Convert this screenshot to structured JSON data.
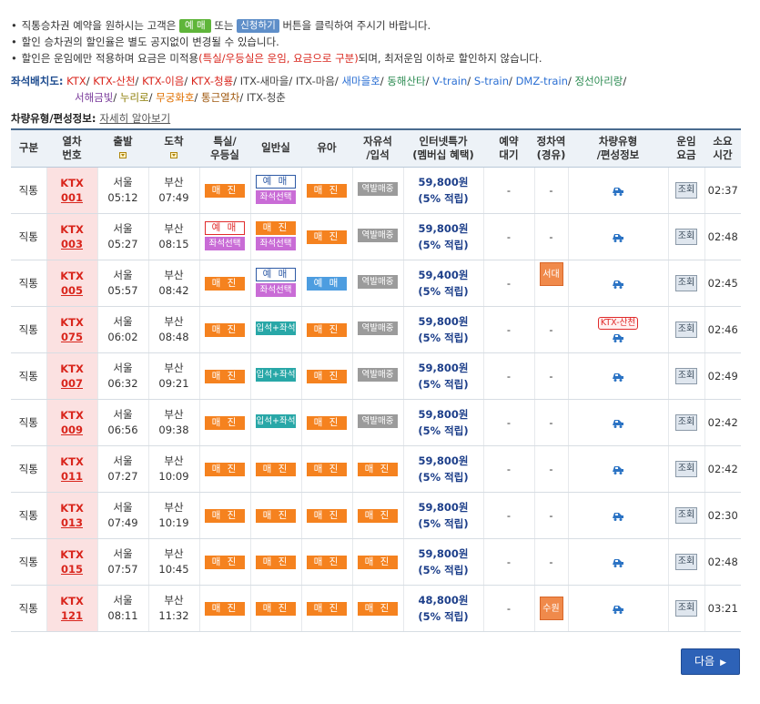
{
  "notes": [
    {
      "pre": "직통승차권 예약을 원하시는 고객은",
      "chip1": "예 매",
      "mid": "또는",
      "chip2": "신청하기",
      "post": "버튼을 클릭하여 주시기 바랍니다."
    },
    {
      "text": "할인 승차권의 할인율은 별도 공지없이 변경될 수 있습니다."
    },
    {
      "pre": "할인은 운임에만 적용하며 요금은 미적용",
      "red": "(특실/우등실은 운임, 요금으로 구분)",
      "post": "되며, 최저운임 이하로 할인하지 않습니다."
    }
  ],
  "seat_map": {
    "label": "좌석배치도:",
    "items": [
      "KTX",
      "KTX-산천",
      "KTX-이음",
      "KTX-청룡",
      "ITX-새마을",
      "ITX-마음",
      "새마을호",
      "동해산타",
      "V-train",
      "S-train",
      "DMZ-train",
      "정선아리랑",
      "서해금빛",
      "누리로",
      "무궁화호",
      "통근열차",
      "ITX-청춘"
    ]
  },
  "vehicle_info": {
    "label": "차량유형/편성정보:",
    "link": "자세히 알아보기"
  },
  "headers": {
    "type": "구분",
    "train_l1": "열차",
    "train_l2": "번호",
    "dep": "출발",
    "arr": "도착",
    "first_l1": "특실/",
    "first_l2": "우등실",
    "general": "일반실",
    "baby": "유아",
    "free_l1": "자유석",
    "free_l2": "/입석",
    "internet_l1": "인터넷특가",
    "internet_l2": "(멤버십 혜택)",
    "wait_l1": "예약",
    "wait_l2": "대기",
    "stop_l1": "정차역",
    "stop_l2": "(경유)",
    "vehicle_l1": "차량유형",
    "vehicle_l2": "/편성정보",
    "fare_l1": "운임",
    "fare_l2": "요금",
    "time_l1": "소요",
    "time_l2": "시간"
  },
  "labels": {
    "sold": "매 진",
    "reserve": "예 매",
    "seat_select": "좌석선택",
    "standing": "입석+좌석",
    "station_sale": "역발매중",
    "lookup": "조회",
    "dash": "-",
    "sancheon": "KTX-산천"
  },
  "trains": [
    {
      "type": "직통",
      "brand": "KTX",
      "no": "001",
      "dep_st": "서울",
      "dep_t": "05:12",
      "arr_st": "부산",
      "arr_t": "07:49",
      "first": "sold",
      "general": "reserve_seat",
      "baby": "sold",
      "free": "station",
      "price": "59,800원",
      "points": "(5% 적립)",
      "wait": "-",
      "stop": "-",
      "vehicle": "icon",
      "duration": "02:37"
    },
    {
      "type": "직통",
      "brand": "KTX",
      "no": "003",
      "dep_st": "서울",
      "dep_t": "05:27",
      "arr_st": "부산",
      "arr_t": "08:15",
      "first": "reserve_red_seat",
      "general": "sold_seat",
      "baby": "sold",
      "free": "station",
      "price": "59,800원",
      "points": "(5% 적립)",
      "wait": "-",
      "stop": "-",
      "vehicle": "icon",
      "duration": "02:48"
    },
    {
      "type": "직통",
      "brand": "KTX",
      "no": "005",
      "dep_st": "서울",
      "dep_t": "05:57",
      "arr_st": "부산",
      "arr_t": "08:42",
      "first": "sold",
      "general": "reserve_seat",
      "baby": "reserve_blue",
      "free": "station",
      "price": "59,400원",
      "points": "(5% 적립)",
      "wait": "-",
      "stop": "서대구",
      "vehicle": "icon",
      "duration": "02:45"
    },
    {
      "type": "직통",
      "brand": "KTX",
      "no": "075",
      "dep_st": "서울",
      "dep_t": "06:02",
      "arr_st": "부산",
      "arr_t": "08:48",
      "first": "sold",
      "general": "standing",
      "baby": "sold",
      "free": "station",
      "price": "59,800원",
      "points": "(5% 적립)",
      "wait": "-",
      "stop": "-",
      "vehicle": "sancheon",
      "duration": "02:46"
    },
    {
      "type": "직통",
      "brand": "KTX",
      "no": "007",
      "dep_st": "서울",
      "dep_t": "06:32",
      "arr_st": "부산",
      "arr_t": "09:21",
      "first": "sold",
      "general": "standing",
      "baby": "sold",
      "free": "station",
      "price": "59,800원",
      "points": "(5% 적립)",
      "wait": "-",
      "stop": "-",
      "vehicle": "icon",
      "duration": "02:49"
    },
    {
      "type": "직통",
      "brand": "KTX",
      "no": "009",
      "dep_st": "서울",
      "dep_t": "06:56",
      "arr_st": "부산",
      "arr_t": "09:38",
      "first": "sold",
      "general": "standing",
      "baby": "sold",
      "free": "station",
      "price": "59,800원",
      "points": "(5% 적립)",
      "wait": "-",
      "stop": "-",
      "vehicle": "icon",
      "duration": "02:42"
    },
    {
      "type": "직통",
      "brand": "KTX",
      "no": "011",
      "dep_st": "서울",
      "dep_t": "07:27",
      "arr_st": "부산",
      "arr_t": "10:09",
      "first": "sold",
      "general": "sold",
      "baby": "sold",
      "free": "sold",
      "price": "59,800원",
      "points": "(5% 적립)",
      "wait": "-",
      "stop": "-",
      "vehicle": "icon",
      "duration": "02:42"
    },
    {
      "type": "직통",
      "brand": "KTX",
      "no": "013",
      "dep_st": "서울",
      "dep_t": "07:49",
      "arr_st": "부산",
      "arr_t": "10:19",
      "first": "sold",
      "general": "sold",
      "baby": "sold",
      "free": "sold",
      "price": "59,800원",
      "points": "(5% 적립)",
      "wait": "-",
      "stop": "-",
      "vehicle": "icon",
      "duration": "02:30"
    },
    {
      "type": "직통",
      "brand": "KTX",
      "no": "015",
      "dep_st": "서울",
      "dep_t": "07:57",
      "arr_st": "부산",
      "arr_t": "10:45",
      "first": "sold",
      "general": "sold",
      "baby": "sold",
      "free": "sold",
      "price": "59,800원",
      "points": "(5% 적립)",
      "wait": "-",
      "stop": "-",
      "vehicle": "icon",
      "duration": "02:48"
    },
    {
      "type": "직통",
      "brand": "KTX",
      "no": "121",
      "dep_st": "서울",
      "dep_t": "08:11",
      "arr_st": "부산",
      "arr_t": "11:32",
      "first": "sold",
      "general": "sold",
      "baby": "sold",
      "free": "sold",
      "price": "48,800원",
      "points": "(5% 적립)",
      "wait": "-",
      "stop": "수원",
      "vehicle": "icon",
      "duration": "03:21"
    }
  ],
  "next_button": "다음"
}
